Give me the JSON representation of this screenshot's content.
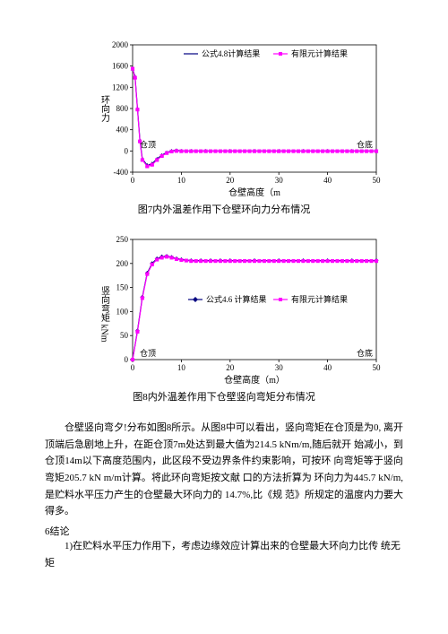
{
  "chart7": {
    "type": "line",
    "xlabel": "仓壁高度（m",
    "ylabel": "环向力",
    "xlim": [
      0,
      50
    ],
    "ylim": [
      -400,
      2000
    ],
    "xticks": [
      0,
      10,
      20,
      30,
      40,
      50
    ],
    "yticks": [
      -400,
      0,
      400,
      800,
      1200,
      1600,
      2000
    ],
    "label_left": "仓顶",
    "label_right": "仓底",
    "legend": {
      "items": [
        {
          "marker": "line",
          "color": "#000080",
          "label": "公式4.8计算结果"
        },
        {
          "marker": "square",
          "color": "#ff00ff",
          "label": "有限元计算结果"
        }
      ]
    },
    "series": [
      {
        "type": "line-tri",
        "color": "#000080",
        "marker_fill": "#000080",
        "data": [
          [
            0,
            1550
          ],
          [
            0.5,
            1400
          ],
          [
            1,
            800
          ],
          [
            1.5,
            200
          ],
          [
            2,
            -150
          ],
          [
            3,
            -270
          ],
          [
            4,
            -240
          ],
          [
            5,
            -150
          ],
          [
            6,
            -80
          ],
          [
            7,
            -30
          ],
          [
            8,
            0
          ],
          [
            9,
            10
          ],
          [
            10,
            0
          ],
          [
            12,
            0
          ],
          [
            15,
            0
          ],
          [
            20,
            0
          ],
          [
            25,
            0
          ],
          [
            30,
            0
          ],
          [
            35,
            0
          ],
          [
            40,
            0
          ],
          [
            45,
            0
          ],
          [
            50,
            0
          ]
        ]
      },
      {
        "type": "line-sq",
        "color": "#ff00ff",
        "marker_fill": "#ff00ff",
        "data": [
          [
            0,
            1550
          ],
          [
            0.5,
            1380
          ],
          [
            1,
            780
          ],
          [
            1.5,
            180
          ],
          [
            2,
            -170
          ],
          [
            3,
            -290
          ],
          [
            4,
            -260
          ],
          [
            5,
            -170
          ],
          [
            6,
            -95
          ],
          [
            7,
            -40
          ],
          [
            8,
            -10
          ],
          [
            9,
            0
          ],
          [
            10,
            -5
          ],
          [
            11,
            -5
          ],
          [
            12,
            -5
          ],
          [
            13,
            -5
          ],
          [
            14,
            -5
          ],
          [
            15,
            -5
          ],
          [
            16,
            -5
          ],
          [
            17,
            -5
          ],
          [
            18,
            -5
          ],
          [
            19,
            -5
          ],
          [
            20,
            -5
          ],
          [
            21,
            -5
          ],
          [
            22,
            -5
          ],
          [
            23,
            -5
          ],
          [
            24,
            -5
          ],
          [
            25,
            -5
          ],
          [
            26,
            -5
          ],
          [
            27,
            -5
          ],
          [
            28,
            -5
          ],
          [
            29,
            -5
          ],
          [
            30,
            -5
          ],
          [
            31,
            -5
          ],
          [
            32,
            -5
          ],
          [
            33,
            -5
          ],
          [
            34,
            -5
          ],
          [
            35,
            -5
          ],
          [
            36,
            -5
          ],
          [
            37,
            -5
          ],
          [
            38,
            -5
          ],
          [
            39,
            -5
          ],
          [
            40,
            -5
          ],
          [
            41,
            -5
          ],
          [
            42,
            -5
          ],
          [
            43,
            -5
          ],
          [
            44,
            -5
          ],
          [
            45,
            -5
          ],
          [
            46,
            -5
          ],
          [
            47,
            -5
          ],
          [
            48,
            -5
          ],
          [
            49,
            -5
          ],
          [
            50,
            -5
          ]
        ]
      }
    ],
    "bg": "#ffffff",
    "grid_color": "#000000",
    "label_fontsize": 9
  },
  "caption7": "图7内外温差作用下仓壁环向力分布情况",
  "chart8": {
    "type": "line",
    "xlabel": "仓壁高度（m）",
    "ylabel": "竖向弯矩 kNm",
    "xlim": [
      0,
      50
    ],
    "ylim": [
      0,
      250
    ],
    "xticks": [
      0,
      10,
      20,
      30,
      40,
      50
    ],
    "yticks": [
      0,
      50,
      100,
      150,
      200,
      250
    ],
    "label_left": "仓顶",
    "label_right": "仓底",
    "legend": {
      "items": [
        {
          "marker": "diamond",
          "color": "#000080",
          "label": "公式4.6 计算结果"
        },
        {
          "marker": "square",
          "color": "#ff00ff",
          "label": "有限元计算结果"
        }
      ]
    },
    "series": [
      {
        "type": "line-dia",
        "color": "#000080",
        "marker_fill": "#000080",
        "data": [
          [
            0,
            0
          ],
          [
            1,
            60
          ],
          [
            2,
            130
          ],
          [
            3,
            180
          ],
          [
            4,
            200
          ],
          [
            5,
            210
          ],
          [
            6,
            214
          ],
          [
            7,
            215
          ],
          [
            8,
            213
          ],
          [
            9,
            210
          ],
          [
            10,
            208
          ],
          [
            12,
            206
          ],
          [
            14,
            206
          ],
          [
            16,
            206
          ],
          [
            18,
            206
          ],
          [
            20,
            206
          ],
          [
            25,
            206
          ],
          [
            30,
            206
          ],
          [
            35,
            206
          ],
          [
            40,
            206
          ],
          [
            45,
            206
          ],
          [
            50,
            206
          ]
        ]
      },
      {
        "type": "line-sq",
        "color": "#ff00ff",
        "marker_fill": "#ff00ff",
        "data": [
          [
            0,
            0
          ],
          [
            1,
            58
          ],
          [
            2,
            128
          ],
          [
            3,
            178
          ],
          [
            4,
            198
          ],
          [
            5,
            208
          ],
          [
            6,
            212
          ],
          [
            7,
            214
          ],
          [
            8,
            212
          ],
          [
            9,
            209
          ],
          [
            10,
            207
          ],
          [
            11,
            206
          ],
          [
            12,
            205
          ],
          [
            13,
            205
          ],
          [
            14,
            205
          ],
          [
            15,
            205
          ],
          [
            16,
            205
          ],
          [
            17,
            205
          ],
          [
            18,
            205
          ],
          [
            19,
            205
          ],
          [
            20,
            205
          ],
          [
            21,
            205
          ],
          [
            22,
            205
          ],
          [
            23,
            205
          ],
          [
            24,
            205
          ],
          [
            25,
            205
          ],
          [
            26,
            205
          ],
          [
            27,
            205
          ],
          [
            28,
            205
          ],
          [
            29,
            205
          ],
          [
            30,
            205
          ],
          [
            31,
            205
          ],
          [
            32,
            205
          ],
          [
            33,
            205
          ],
          [
            34,
            205
          ],
          [
            35,
            205
          ],
          [
            36,
            205
          ],
          [
            37,
            205
          ],
          [
            38,
            205
          ],
          [
            39,
            205
          ],
          [
            40,
            205
          ],
          [
            41,
            205
          ],
          [
            42,
            205
          ],
          [
            43,
            205
          ],
          [
            44,
            205
          ],
          [
            45,
            205
          ],
          [
            46,
            205
          ],
          [
            47,
            205
          ],
          [
            48,
            205
          ],
          [
            49,
            205
          ],
          [
            50,
            205
          ]
        ]
      }
    ],
    "bg": "#ffffff",
    "grid_color": "#000000",
    "label_fontsize": 9
  },
  "caption8": "图8内外温差作用下仓壁竖向弯矩分布情况",
  "para1": "仓壁竖向弯夕!分布如图8所示。从图8中可以看出，竖向弯矩在仓顶是为0, 离开顶端后急剧地上升，在距仓顶7m处达到最大值为214.5 kNm/m,随后就开 始减小，到仓顶14m以下高度范围内，此区段不受边界条件约束影响，可按环 向弯矩等于竖向弯矩205.7 kN m/m计算。将此环向弯矩按文献 口的方法折算为 环向力为445.7 kN/m,是贮料水平压力产生的仓壁最大环向力的 14.7%,比《规 范》所规定的温度内力要大得多。",
  "sec6": "6结论",
  "item1": "1)在贮料水平压力作用下，考虑边缘效应计算出来的仓壁最大环向力比传 统无矩"
}
